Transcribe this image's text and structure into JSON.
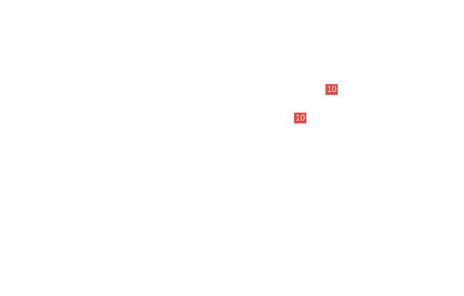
{
  "badges": [
    {
      "label": "10",
      "color": "#e8453c"
    },
    {
      "label": "10",
      "color": "#e8453c"
    }
  ]
}
